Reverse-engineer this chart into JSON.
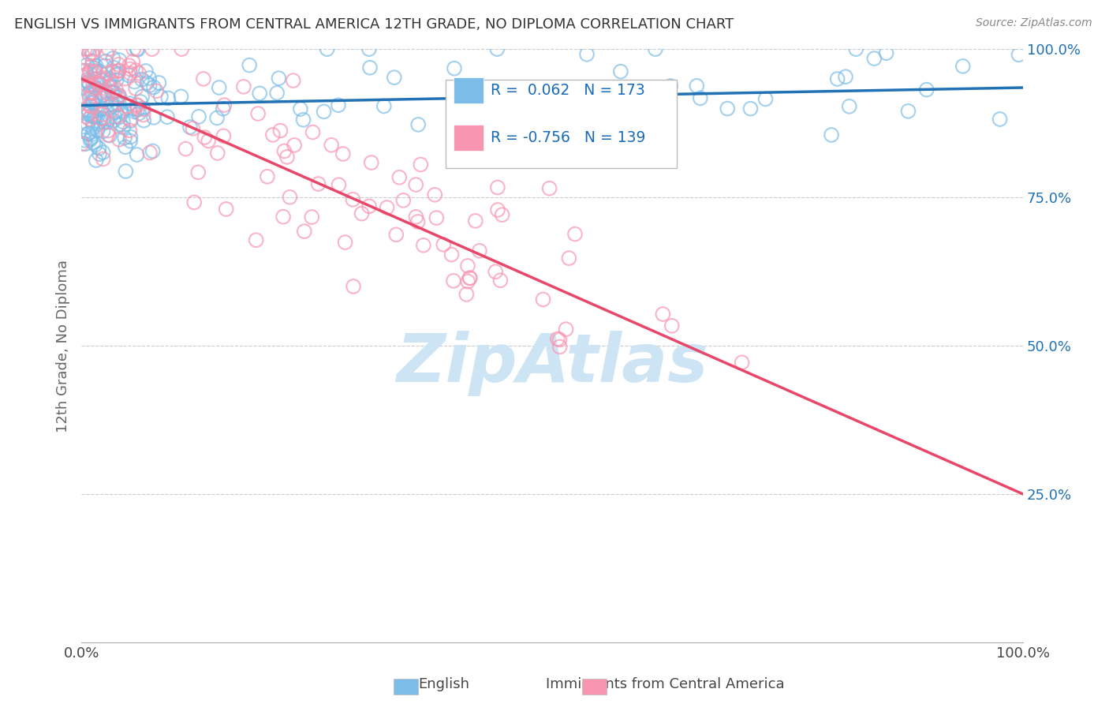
{
  "title": "ENGLISH VS IMMIGRANTS FROM CENTRAL AMERICA 12TH GRADE, NO DIPLOMA CORRELATION CHART",
  "source_text": "Source: ZipAtlas.com",
  "ylabel": "12th Grade, No Diploma",
  "x_min": 0.0,
  "x_max": 1.0,
  "y_min": 0.0,
  "y_max": 1.0,
  "x_tick_labels": [
    "0.0%",
    "100.0%"
  ],
  "x_tick_positions": [
    0.0,
    1.0
  ],
  "y_tick_labels_right": [
    "25.0%",
    "50.0%",
    "75.0%",
    "100.0%"
  ],
  "y_tick_positions_right": [
    0.25,
    0.5,
    0.75,
    1.0
  ],
  "english_R": 0.062,
  "english_N": 173,
  "immigrants_R": -0.756,
  "immigrants_N": 139,
  "english_color": "#7bbde8",
  "english_line_color": "#2171b5",
  "immigrants_color": "#f895b0",
  "immigrants_line_color": "#e8476a",
  "background_color": "#ffffff",
  "grid_color": "#cccccc",
  "title_color": "#333333",
  "watermark_text": "ZipAtlas",
  "watermark_color": "#cde4f5",
  "legend_color": "#1a6bb5",
  "english_line_y0": 0.905,
  "english_line_y1": 0.935,
  "immigrants_line_y0": 0.95,
  "immigrants_line_y1": 0.25
}
